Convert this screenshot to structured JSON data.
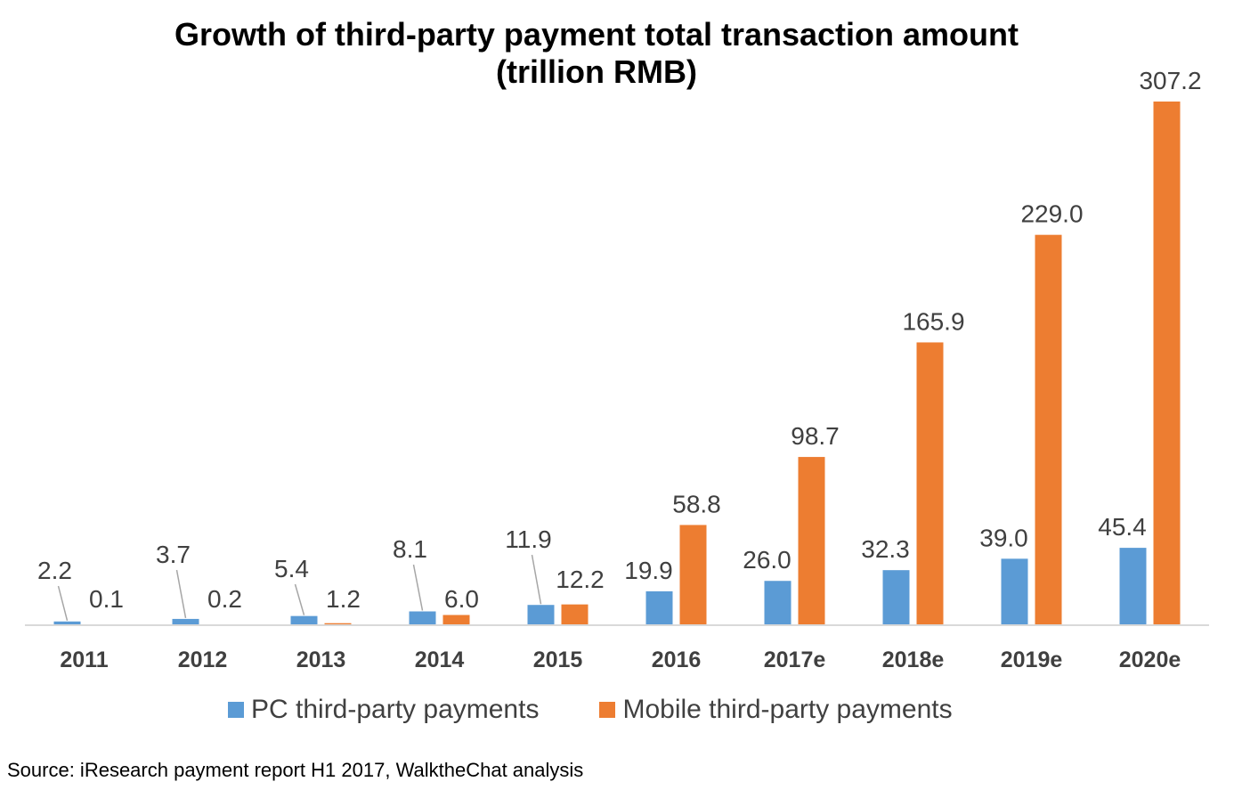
{
  "chart_data": {
    "type": "bar",
    "title_lines": [
      "Growth of third-party payment total transaction amount",
      "(trillion RMB)"
    ],
    "categories": [
      "2011",
      "2012",
      "2013",
      "2014",
      "2015",
      "2016",
      "2017e",
      "2018e",
      "2019e",
      "2020e"
    ],
    "series": [
      {
        "name": "PC third-party payments",
        "color": "#5B9BD5",
        "values": [
          2.2,
          3.7,
          5.4,
          8.1,
          11.9,
          19.9,
          26.0,
          32.3,
          39.0,
          45.4
        ],
        "labels": [
          "2.2",
          "3.7",
          "5.4",
          "8.1",
          "11.9",
          "19.9",
          "26.0",
          "32.3",
          "39.0",
          "45.4"
        ]
      },
      {
        "name": "Mobile third-party payments",
        "color": "#ED7D31",
        "values": [
          0.1,
          0.2,
          1.2,
          6.0,
          12.2,
          58.8,
          98.7,
          165.9,
          229.0,
          307.2
        ],
        "labels": [
          "0.1",
          "0.2",
          "1.2",
          "6.0",
          "12.2",
          "58.8",
          "98.7",
          "165.9",
          "229.0",
          "307.2"
        ]
      }
    ],
    "xlabel": "",
    "ylabel": "",
    "ylim": [
      0,
      307.2
    ],
    "grid": false,
    "legend_position": "bottom",
    "source": "Source: iResearch payment report H1 2017, WalktheChat analysis"
  }
}
